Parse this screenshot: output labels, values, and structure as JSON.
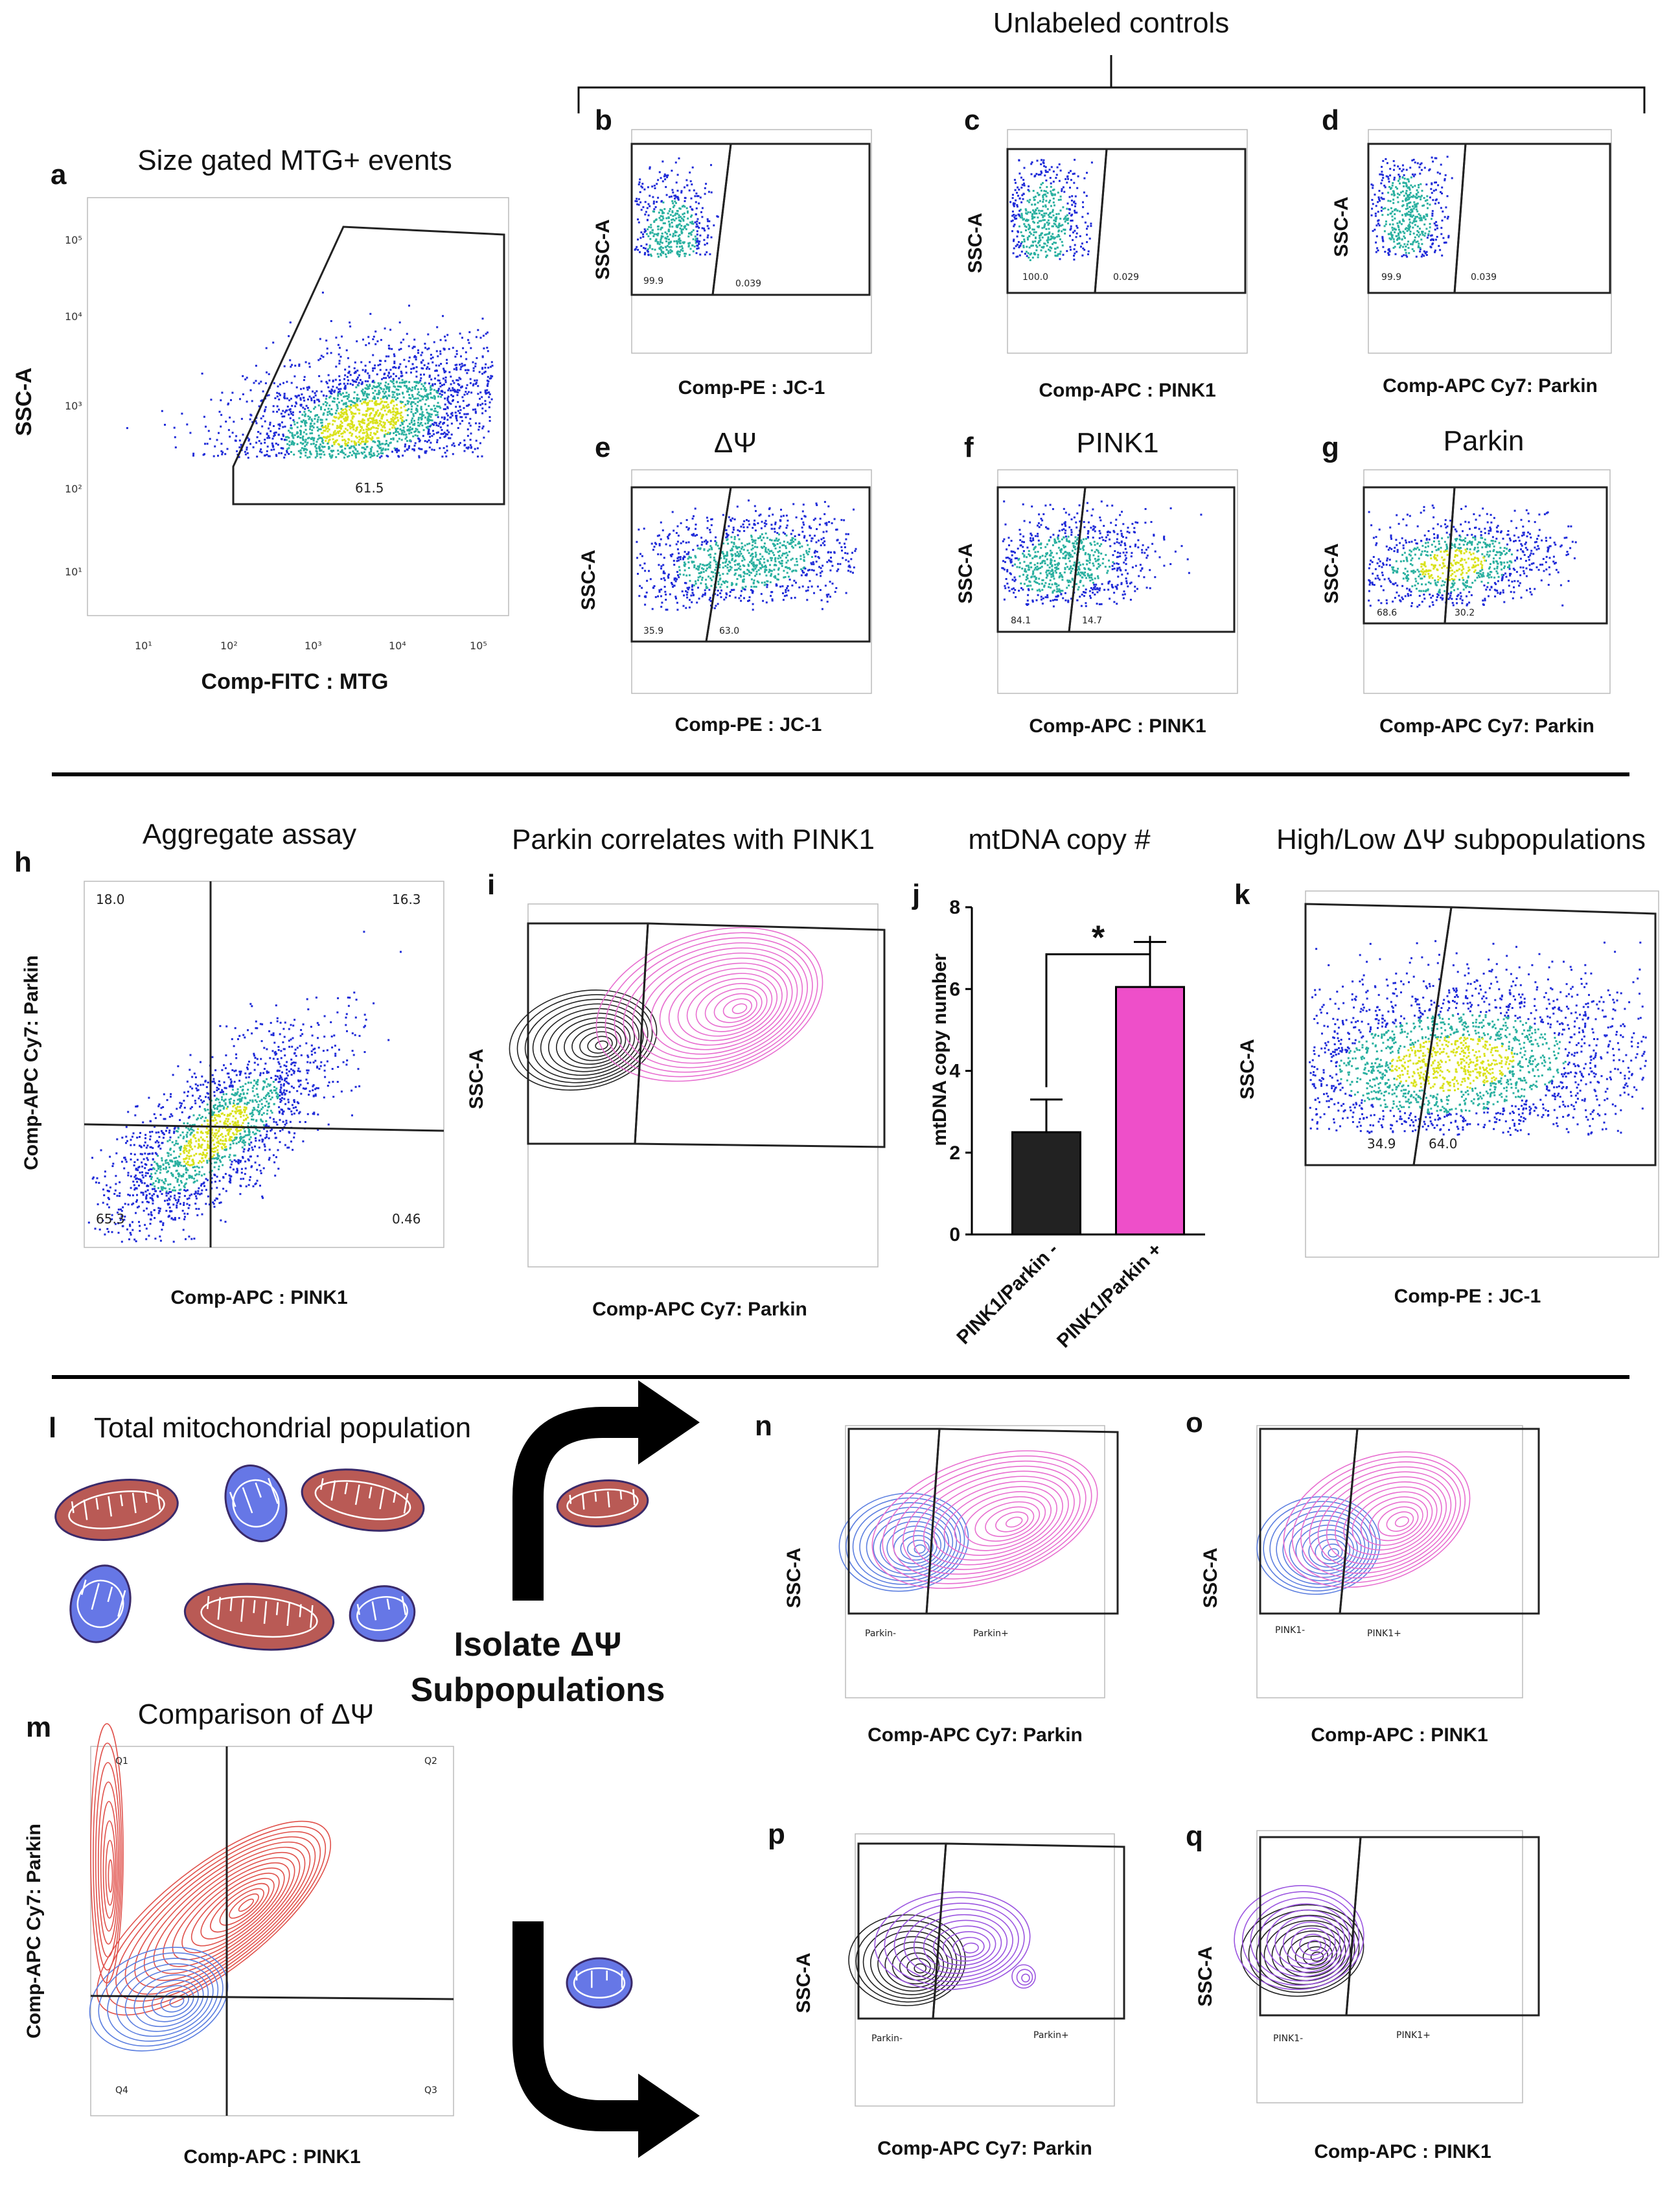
{
  "header": {
    "unlabeled_controls": "Unlabeled controls"
  },
  "colors": {
    "density_low": "#1f2bd8",
    "density_mid": "#2ab0a0",
    "density_high": "#d9e21a",
    "parkin_pos": "#e86fd0",
    "neg_black": "#222222",
    "red_contour": "#e0504a",
    "blue_contour": "#5c7fe0",
    "mito_red": "#b95a55",
    "mito_blue": "#6677e6",
    "bar_pink": "#ee4fc9"
  },
  "ticks": {
    "t1": "10¹",
    "t2": "10²",
    "t3": "10³",
    "t4": "10⁴",
    "t5": "10⁵"
  },
  "panels": {
    "a": {
      "label": "a",
      "title": "Size gated MTG+ events",
      "xlabel": "Comp-FITC : MTG",
      "ylabel": "SSC-A",
      "gate_value": "61.5"
    },
    "b": {
      "label": "b",
      "xlabel": "Comp-PE : JC-1",
      "ylabel": "SSC-A",
      "left": "99.9",
      "right": "0.039"
    },
    "c": {
      "label": "c",
      "xlabel": "Comp-APC : PINK1",
      "ylabel": "SSC-A",
      "left": "100.0",
      "right": "0.029"
    },
    "d": {
      "label": "d",
      "xlabel": "Comp-APC Cy7: Parkin",
      "ylabel": "SSC-A",
      "left": "99.9",
      "right": "0.039"
    },
    "e": {
      "label": "e",
      "title": "ΔΨ",
      "xlabel": "Comp-PE : JC-1",
      "ylabel": "SSC-A",
      "left": "35.9",
      "right": "63.0"
    },
    "f": {
      "label": "f",
      "title": "PINK1",
      "xlabel": "Comp-APC : PINK1",
      "ylabel": "SSC-A",
      "left": "84.1",
      "right": "14.7"
    },
    "g": {
      "label": "g",
      "title": "Parkin",
      "xlabel": "Comp-APC Cy7: Parkin",
      "ylabel": "SSC-A",
      "left": "68.6",
      "right": "30.2"
    },
    "h": {
      "label": "h",
      "title": "Aggregate assay",
      "xlabel": "Comp-APC : PINK1",
      "ylabel": "Comp-APC Cy7: Parkin",
      "q_ul": "18.0",
      "q_ur": "16.3",
      "q_ll": "65.3",
      "q_lr": "0.46"
    },
    "i": {
      "label": "i",
      "title": "Parkin correlates with PINK1",
      "xlabel": "Comp-APC Cy7: Parkin",
      "ylabel": "SSC-A"
    },
    "k": {
      "label": "k",
      "title": "High/Low ΔΨ subpopulations",
      "xlabel": "Comp-PE : JC-1",
      "ylabel": "SSC-A",
      "left": "34.9",
      "right": "64.0"
    },
    "l": {
      "label": "l",
      "title": "Total mitochondrial population"
    },
    "m": {
      "label": "m",
      "title": "Comparison of ΔΨ",
      "xlabel": "Comp-APC : PINK1",
      "ylabel": "Comp-APC Cy7: Parkin",
      "q1": "Q1",
      "q2": "Q2",
      "q3": "Q3",
      "q4": "Q4"
    },
    "n": {
      "label": "n",
      "xlabel": "Comp-APC Cy7: Parkin",
      "ylabel": "SSC-A",
      "neg": "Parkin-",
      "pos": "Parkin+"
    },
    "o": {
      "label": "o",
      "xlabel": "Comp-APC : PINK1",
      "ylabel": "SSC-A",
      "neg": "PINK1-",
      "pos": "PINK1+"
    },
    "p": {
      "label": "p",
      "xlabel": "Comp-APC Cy7: Parkin",
      "ylabel": "SSC-A",
      "neg": "Parkin-",
      "pos": "Parkin+"
    },
    "q": {
      "label": "q",
      "xlabel": "Comp-APC : PINK1",
      "ylabel": "SSC-A",
      "neg": "PINK1-",
      "pos": "PINK1+"
    }
  },
  "isolate": {
    "line1": "Isolate ΔΨ",
    "line2": "Subpopulations"
  },
  "chart_data": {
    "type": "bar",
    "panel": "j",
    "title": "mtDNA copy #",
    "categories": [
      "PINK1/Parkin -",
      "PINK1/Parkin +"
    ],
    "values": [
      2.5,
      6.05
    ],
    "errors": [
      0.8,
      1.1
    ],
    "ylabel": "mtDNA copy number",
    "xlabel": "",
    "ylim": [
      0,
      8
    ],
    "yticks": [
      0,
      2,
      4,
      6,
      8
    ],
    "significance": "*"
  }
}
